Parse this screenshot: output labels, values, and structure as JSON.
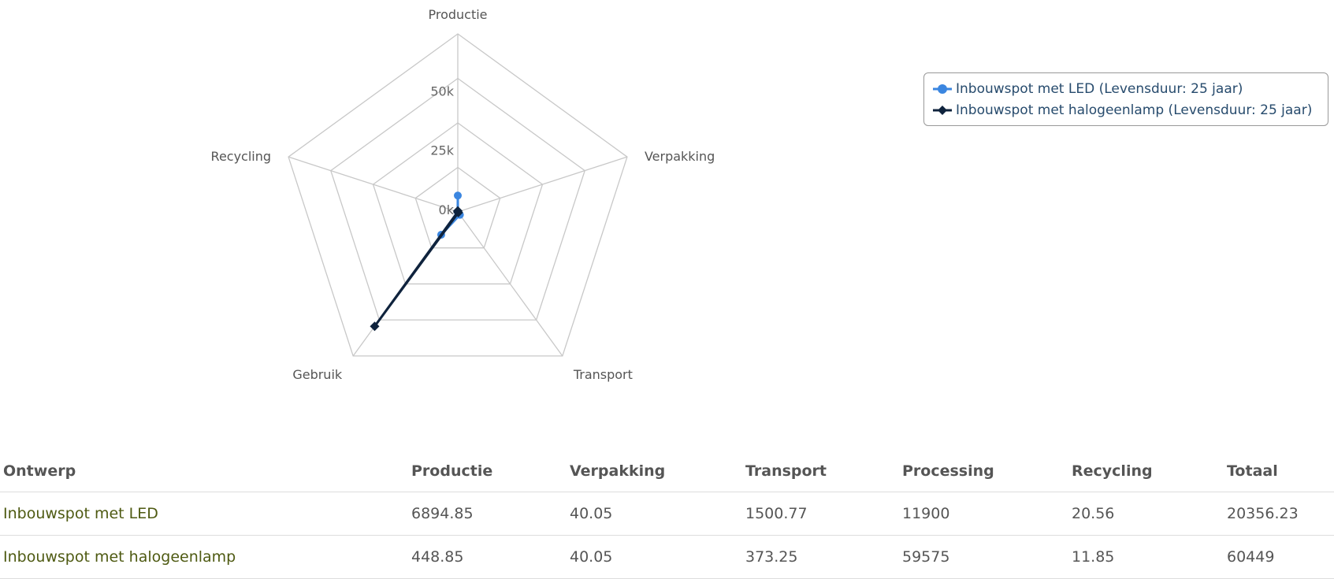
{
  "chart_data": {
    "type": "radar",
    "axes": [
      "Productie",
      "Verpakking",
      "Transport",
      "Gebruik",
      "Recycling"
    ],
    "ticks": [
      "0k",
      "25k",
      "50k"
    ],
    "range": [
      0,
      75000
    ],
    "grid": true,
    "legend_position": "top-right",
    "series": [
      {
        "name": "Inbouwspot met LED (Levensduur: 25 jaar)",
        "values": [
          6894.85,
          40.05,
          1500.77,
          11900,
          20.56
        ],
        "color": "#3b86e0",
        "marker": "circle"
      },
      {
        "name": "Inbouwspot met halogeenlamp (Levensduur: 25 jaar)",
        "values": [
          448.85,
          40.05,
          373.25,
          59575,
          11.85
        ],
        "color": "#0f233d",
        "marker": "diamond"
      }
    ]
  },
  "table": {
    "headers": [
      "Ontwerp",
      "Productie",
      "Verpakking",
      "Transport",
      "Processing",
      "Recycling",
      "Totaal"
    ],
    "rows": [
      [
        "Inbouwspot met LED",
        "6894.85",
        "40.05",
        "1500.77",
        "11900",
        "20.56",
        "20356.23"
      ],
      [
        "Inbouwspot met halogeenlamp",
        "448.85",
        "40.05",
        "373.25",
        "59575",
        "11.85",
        "60449"
      ]
    ]
  }
}
